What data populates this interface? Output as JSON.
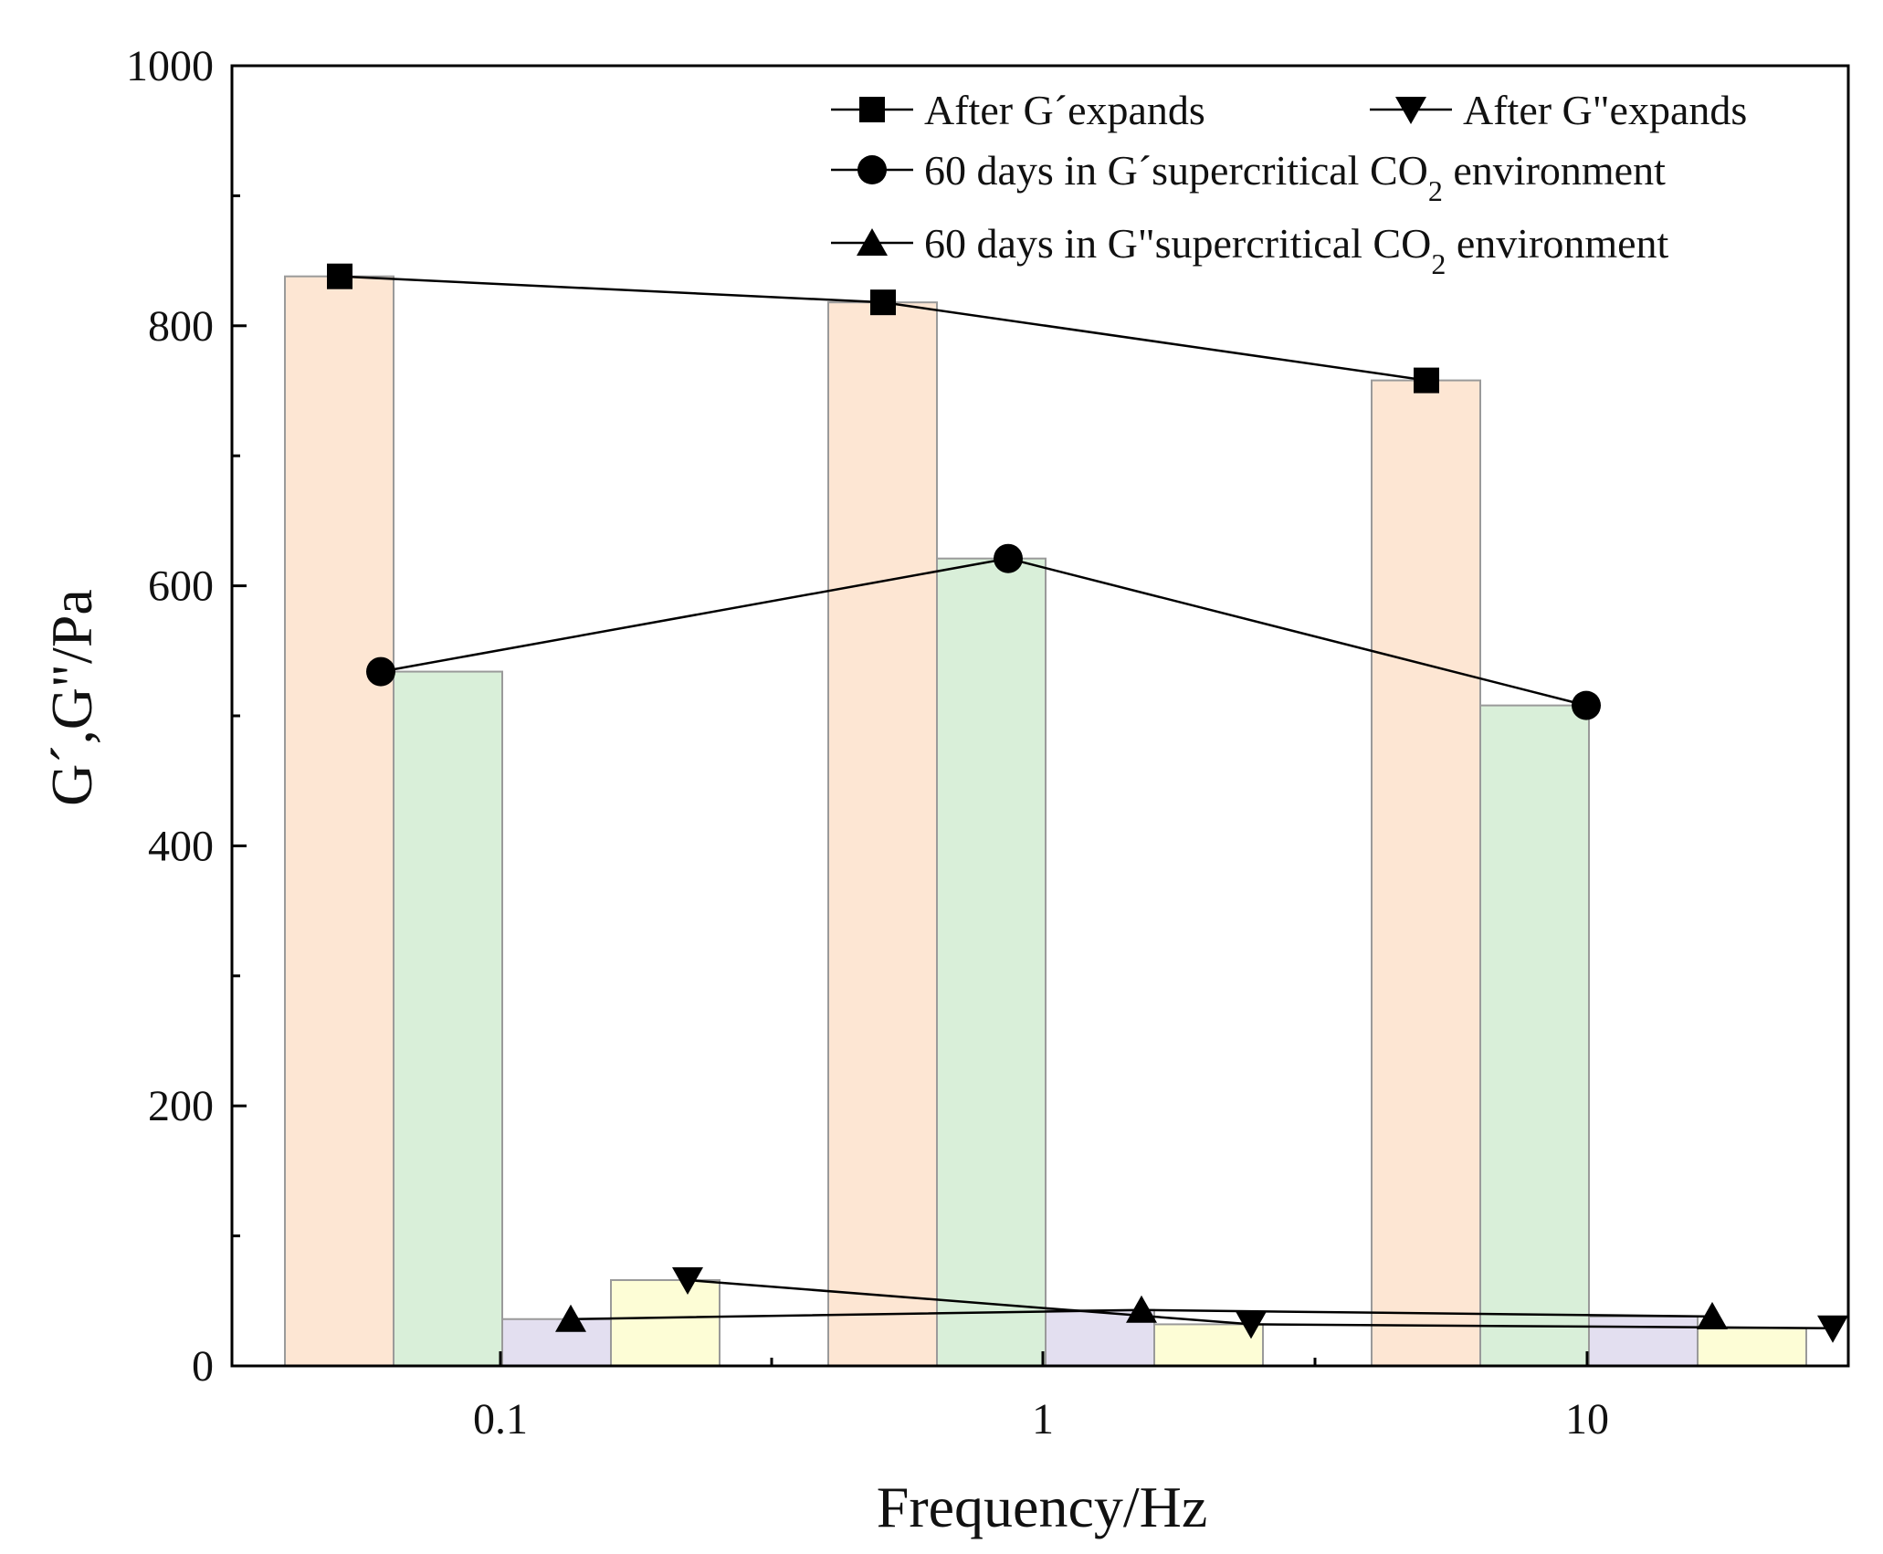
{
  "chart_data": {
    "type": "bar",
    "title": "",
    "xlabel": "Frequency/Hz",
    "ylabel": "G´,G\"/Pa",
    "categories": [
      "0.1",
      "1",
      "10"
    ],
    "ylim": [
      0,
      1000
    ],
    "yticks": [
      0,
      200,
      400,
      600,
      800,
      1000
    ],
    "grid": false,
    "legend_position": "top-right",
    "series": [
      {
        "name": "After G´expands",
        "legend_parts": [
          "After G´expands"
        ],
        "marker": "square",
        "bar_color": "#fde6d3",
        "values": [
          838,
          818,
          758
        ]
      },
      {
        "name": "60 days in G´supercritical CO2 environment",
        "legend_parts": [
          "60 days in G´supercritical CO",
          "2",
          " environment"
        ],
        "marker": "circle",
        "bar_color": "#d9efd9",
        "values": [
          534,
          621,
          508
        ]
      },
      {
        "name": "60 days in G\"supercritical CO2 environment",
        "legend_parts": [
          "60 days in G\"supercritical CO",
          "2",
          " environment"
        ],
        "marker": "triangle-up",
        "bar_color": "#e3dff0",
        "values": [
          36,
          43,
          38
        ]
      },
      {
        "name": "After G\"expands",
        "legend_parts": [
          "After G\"expands"
        ],
        "marker": "triangle-down",
        "bar_color": "#fdfdd6",
        "values": [
          66,
          32,
          29
        ]
      }
    ]
  }
}
